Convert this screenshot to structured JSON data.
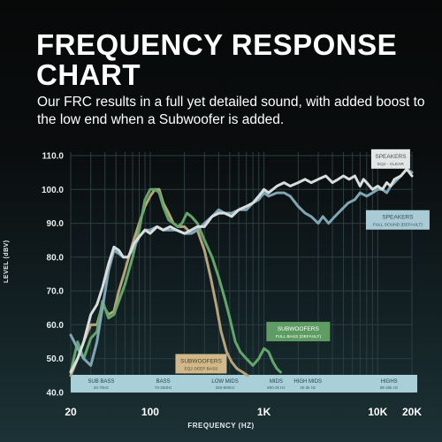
{
  "header": {
    "title": "FREQUENCY RESPONSE CHART",
    "subtitle": "Our FRC results in a full yet detailed sound, with added boost to the low end when a Subwoofer is added."
  },
  "colors": {
    "grid": "#2c3e42",
    "band": "#a9cfd9",
    "speakers_clear": "#d9dddd",
    "speakers_full": "#7fa6b2",
    "subwoofers_full": "#62a66a",
    "subwoofers_eq2": "#b7a47a"
  },
  "chart_data": {
    "type": "line",
    "xscale": "log",
    "xlim": [
      20,
      20000
    ],
    "ylim": [
      40,
      112
    ],
    "xlabel": "FREQUENCY (HZ)",
    "ylabel": "LEVEL (dBV)",
    "x_ticks": [
      {
        "value": 20,
        "label": "20"
      },
      {
        "value": 100,
        "label": "100"
      },
      {
        "value": 1000,
        "label": "1K"
      },
      {
        "value": 10000,
        "label": "10K"
      },
      {
        "value": 20000,
        "label": "20K"
      }
    ],
    "y_ticks": [
      {
        "value": 40,
        "label": "40.0"
      },
      {
        "value": 50,
        "label": "50.0"
      },
      {
        "value": 60,
        "label": "60.0"
      },
      {
        "value": 70,
        "label": "70.0"
      },
      {
        "value": 80,
        "label": "80.0"
      },
      {
        "value": 90,
        "label": "90.0"
      },
      {
        "value": 100,
        "label": "100.0"
      },
      {
        "value": 110,
        "label": "110.0"
      }
    ],
    "bands": [
      {
        "name": "SUB BASS",
        "range": "20-70Hz",
        "center": 37
      },
      {
        "name": "BASS",
        "range": "70-250Hz",
        "center": 130
      },
      {
        "name": "LOW MIDS",
        "range": "250-800Hz",
        "center": 455
      },
      {
        "name": "MIDS",
        "range": "800-2k Hz",
        "center": 1280
      },
      {
        "name": "HIGH MIDS",
        "range": "2k-3k Hz",
        "center": 2430
      },
      {
        "name": "HIGHS",
        "range": "8k-20k Hz",
        "center": 12600
      }
    ],
    "series": [
      {
        "name": "SPEAKERS",
        "sub": "EQ2 - CLEAR",
        "label_at": [
          13000,
          109
        ],
        "color": "#d9dddd",
        "points": [
          [
            20,
            46
          ],
          [
            23,
            50
          ],
          [
            26,
            55
          ],
          [
            30,
            63
          ],
          [
            34,
            66
          ],
          [
            38,
            71
          ],
          [
            43,
            78
          ],
          [
            48,
            83
          ],
          [
            53,
            82
          ],
          [
            58,
            80
          ],
          [
            64,
            80
          ],
          [
            72,
            84
          ],
          [
            80,
            86
          ],
          [
            90,
            88
          ],
          [
            100,
            87
          ],
          [
            115,
            89
          ],
          [
            130,
            88
          ],
          [
            150,
            89
          ],
          [
            170,
            88
          ],
          [
            200,
            87
          ],
          [
            230,
            88
          ],
          [
            260,
            89
          ],
          [
            300,
            89
          ],
          [
            350,
            92
          ],
          [
            400,
            93
          ],
          [
            450,
            93
          ],
          [
            520,
            92
          ],
          [
            600,
            94
          ],
          [
            700,
            95
          ],
          [
            800,
            96
          ],
          [
            900,
            98
          ],
          [
            1000,
            100
          ],
          [
            1100,
            99
          ],
          [
            1300,
            101
          ],
          [
            1500,
            102
          ],
          [
            1700,
            101
          ],
          [
            2000,
            102
          ],
          [
            2300,
            103
          ],
          [
            2600,
            102
          ],
          [
            3000,
            103
          ],
          [
            3500,
            104
          ],
          [
            4000,
            102
          ],
          [
            4500,
            103
          ],
          [
            5000,
            104
          ],
          [
            5600,
            103
          ],
          [
            6300,
            104
          ],
          [
            7000,
            101
          ],
          [
            7500,
            103
          ],
          [
            8000,
            102
          ],
          [
            9000,
            100
          ],
          [
            10000,
            101
          ],
          [
            11000,
            100
          ],
          [
            12000,
            102
          ],
          [
            13000,
            101
          ],
          [
            14000,
            103
          ],
          [
            16000,
            104
          ],
          [
            18000,
            106
          ],
          [
            20000,
            104
          ]
        ]
      },
      {
        "name": "SPEAKERS",
        "sub": "FULL SOUND (DEFAULT)",
        "label_at": [
          15000,
          91
        ],
        "color": "#7fa6b2",
        "points": [
          [
            20,
            57
          ],
          [
            23,
            53
          ],
          [
            26,
            50
          ],
          [
            30,
            48
          ],
          [
            34,
            55
          ],
          [
            38,
            65
          ],
          [
            43,
            76
          ],
          [
            48,
            82
          ],
          [
            53,
            81
          ],
          [
            58,
            80
          ],
          [
            64,
            80
          ],
          [
            72,
            83
          ],
          [
            80,
            86
          ],
          [
            90,
            88
          ],
          [
            100,
            88
          ],
          [
            115,
            89
          ],
          [
            130,
            88
          ],
          [
            150,
            88
          ],
          [
            170,
            88
          ],
          [
            200,
            87
          ],
          [
            230,
            87
          ],
          [
            260,
            88
          ],
          [
            300,
            90
          ],
          [
            350,
            92
          ],
          [
            400,
            94
          ],
          [
            450,
            93
          ],
          [
            520,
            93
          ],
          [
            600,
            94
          ],
          [
            700,
            94
          ],
          [
            800,
            96
          ],
          [
            900,
            97
          ],
          [
            1000,
            99
          ],
          [
            1100,
            98
          ],
          [
            1300,
            99
          ],
          [
            1500,
            99
          ],
          [
            1700,
            98
          ],
          [
            2000,
            95
          ],
          [
            2300,
            93
          ],
          [
            2600,
            92
          ],
          [
            3000,
            90
          ],
          [
            3300,
            92
          ],
          [
            3700,
            90
          ],
          [
            4200,
            92
          ],
          [
            4800,
            94
          ],
          [
            5500,
            96
          ],
          [
            6300,
            97
          ],
          [
            7000,
            99
          ],
          [
            8000,
            98
          ],
          [
            9000,
            99
          ],
          [
            10000,
            100
          ],
          [
            11000,
            100
          ],
          [
            12000,
            99
          ],
          [
            13000,
            101
          ],
          [
            14000,
            102
          ],
          [
            16000,
            104
          ],
          [
            18000,
            106
          ],
          [
            20000,
            105
          ]
        ]
      },
      {
        "name": "SUBWOOFERS",
        "sub": "FULL BASS (DEFAULT)",
        "label_at": [
          2000,
          58
        ],
        "color": "#62a66a",
        "points": [
          [
            20,
            46
          ],
          [
            23,
            55
          ],
          [
            26,
            50
          ],
          [
            30,
            56
          ],
          [
            34,
            58
          ],
          [
            38,
            67
          ],
          [
            43,
            62
          ],
          [
            48,
            63
          ],
          [
            53,
            67
          ],
          [
            60,
            72
          ],
          [
            70,
            80
          ],
          [
            80,
            88
          ],
          [
            90,
            97
          ],
          [
            100,
            100
          ],
          [
            110,
            100
          ],
          [
            120,
            99
          ],
          [
            130,
            95
          ],
          [
            145,
            91
          ],
          [
            160,
            90
          ],
          [
            175,
            89
          ],
          [
            190,
            90
          ],
          [
            210,
            93
          ],
          [
            230,
            92
          ],
          [
            260,
            90
          ],
          [
            300,
            85
          ],
          [
            350,
            80
          ],
          [
            400,
            74
          ],
          [
            450,
            68
          ],
          [
            500,
            62
          ],
          [
            560,
            55
          ],
          [
            620,
            52
          ],
          [
            700,
            50
          ],
          [
            800,
            48
          ],
          [
            900,
            50
          ],
          [
            1000,
            53
          ],
          [
            1100,
            52
          ],
          [
            1200,
            49
          ],
          [
            1300,
            47
          ],
          [
            1400,
            46
          ]
        ]
      },
      {
        "name": "SUBWOOFERS",
        "sub": "EQ2 DEEP BASS",
        "label_at": [
          280,
          48.5
        ],
        "color": "#b7a47a",
        "points": [
          [
            20,
            45
          ],
          [
            23,
            50
          ],
          [
            26,
            55
          ],
          [
            30,
            60
          ],
          [
            34,
            60
          ],
          [
            38,
            66
          ],
          [
            43,
            63
          ],
          [
            48,
            64
          ],
          [
            53,
            70
          ],
          [
            60,
            76
          ],
          [
            70,
            84
          ],
          [
            80,
            90
          ],
          [
            90,
            95
          ],
          [
            100,
            98
          ],
          [
            110,
            100
          ],
          [
            120,
            100
          ],
          [
            130,
            96
          ],
          [
            145,
            93
          ],
          [
            160,
            90
          ],
          [
            175,
            89
          ],
          [
            200,
            89
          ],
          [
            230,
            87
          ],
          [
            260,
            88
          ],
          [
            300,
            82
          ],
          [
            340,
            74
          ],
          [
            380,
            66
          ],
          [
            420,
            58
          ],
          [
            470,
            52
          ],
          [
            520,
            49
          ],
          [
            580,
            47
          ],
          [
            650,
            46
          ],
          [
            720,
            45
          ]
        ]
      }
    ],
    "legend": "inline labels"
  }
}
